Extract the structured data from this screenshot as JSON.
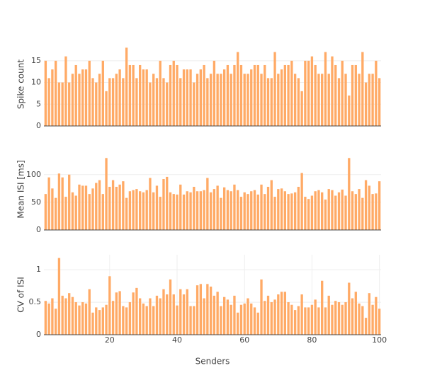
{
  "chart_data": [
    {
      "type": "bar",
      "y_label": "Spike count",
      "color": "#ffaa66",
      "x": [
        1,
        2,
        3,
        4,
        5,
        6,
        7,
        8,
        9,
        10,
        11,
        12,
        13,
        14,
        15,
        16,
        17,
        18,
        19,
        20,
        21,
        22,
        23,
        24,
        25,
        26,
        27,
        28,
        29,
        30,
        31,
        32,
        33,
        34,
        35,
        36,
        37,
        38,
        39,
        40,
        41,
        42,
        43,
        44,
        45,
        46,
        47,
        48,
        49,
        50,
        51,
        52,
        53,
        54,
        55,
        56,
        57,
        58,
        59,
        60,
        61,
        62,
        63,
        64,
        65,
        66,
        67,
        68,
        69,
        70,
        71,
        72,
        73,
        74,
        75,
        76,
        77,
        78,
        79,
        80,
        81,
        82,
        83,
        84,
        85,
        86,
        87,
        88,
        89,
        90,
        91,
        92,
        93,
        94,
        95,
        96,
        97,
        98,
        99,
        100
      ],
      "values": [
        15,
        11,
        13,
        15,
        10,
        10,
        16,
        10,
        12,
        14,
        12,
        13,
        13,
        15,
        11,
        10,
        12,
        15,
        8,
        11,
        11,
        12,
        13,
        11,
        18,
        14,
        14,
        11,
        14,
        13,
        13,
        10,
        12,
        11,
        15,
        11,
        10,
        14,
        15,
        14,
        11,
        13,
        13,
        13,
        10,
        12,
        13,
        14,
        11,
        12,
        15,
        12,
        12,
        13,
        14,
        12,
        14,
        17,
        14,
        12,
        12,
        13,
        14,
        14,
        12,
        14,
        11,
        11,
        17,
        12,
        13,
        14,
        14,
        15,
        12,
        11,
        8,
        15,
        15,
        16,
        14,
        12,
        12,
        17,
        12,
        16,
        14,
        11,
        15,
        12,
        7,
        14,
        14,
        12,
        17,
        10,
        12,
        12,
        15,
        11
      ],
      "xlim": [
        0.5,
        100.5
      ],
      "ylim": [
        0,
        19.2
      ],
      "yticks": [
        0,
        5,
        10,
        15
      ],
      "grid": true
    },
    {
      "type": "bar",
      "y_label": "Mean ISI [ms]",
      "color": "#ffaa66",
      "x": [
        1,
        2,
        3,
        4,
        5,
        6,
        7,
        8,
        9,
        10,
        11,
        12,
        13,
        14,
        15,
        16,
        17,
        18,
        19,
        20,
        21,
        22,
        23,
        24,
        25,
        26,
        27,
        28,
        29,
        30,
        31,
        32,
        33,
        34,
        35,
        36,
        37,
        38,
        39,
        40,
        41,
        42,
        43,
        44,
        45,
        46,
        47,
        48,
        49,
        50,
        51,
        52,
        53,
        54,
        55,
        56,
        57,
        58,
        59,
        60,
        61,
        62,
        63,
        64,
        65,
        66,
        67,
        68,
        69,
        70,
        71,
        72,
        73,
        74,
        75,
        76,
        77,
        78,
        79,
        80,
        81,
        82,
        83,
        84,
        85,
        86,
        87,
        88,
        89,
        90,
        91,
        92,
        93,
        94,
        95,
        96,
        97,
        98,
        99,
        100
      ],
      "values": [
        65,
        95,
        75,
        58,
        102,
        95,
        60,
        100,
        68,
        62,
        82,
        80,
        80,
        65,
        75,
        85,
        90,
        65,
        130,
        78,
        90,
        78,
        82,
        88,
        58,
        70,
        72,
        74,
        70,
        68,
        72,
        94,
        68,
        80,
        60,
        92,
        96,
        68,
        65,
        64,
        82,
        64,
        70,
        68,
        78,
        70,
        70,
        72,
        94,
        68,
        74,
        80,
        58,
        77,
        72,
        70,
        82,
        72,
        60,
        68,
        65,
        70,
        72,
        64,
        82,
        65,
        78,
        90,
        60,
        74,
        75,
        70,
        65,
        66,
        68,
        78,
        103,
        60,
        56,
        62,
        70,
        72,
        68,
        55,
        74,
        72,
        62,
        68,
        73,
        62,
        130,
        70,
        65,
        74,
        58,
        90,
        80,
        65,
        66,
        88
      ],
      "xlim": [
        0.5,
        100.5
      ],
      "ylim": [
        0,
        147
      ],
      "yticks": [
        0,
        50,
        100
      ],
      "grid": true
    },
    {
      "type": "bar",
      "y_label": "CV of ISI",
      "x_label": "Senders",
      "color": "#ffaa66",
      "x": [
        1,
        2,
        3,
        4,
        5,
        6,
        7,
        8,
        9,
        10,
        11,
        12,
        13,
        14,
        15,
        16,
        17,
        18,
        19,
        20,
        21,
        22,
        23,
        24,
        25,
        26,
        27,
        28,
        29,
        30,
        31,
        32,
        33,
        34,
        35,
        36,
        37,
        38,
        39,
        40,
        41,
        42,
        43,
        44,
        45,
        46,
        47,
        48,
        49,
        50,
        51,
        52,
        53,
        54,
        55,
        56,
        57,
        58,
        59,
        60,
        61,
        62,
        63,
        64,
        65,
        66,
        67,
        68,
        69,
        70,
        71,
        72,
        73,
        74,
        75,
        76,
        77,
        78,
        79,
        80,
        81,
        82,
        83,
        84,
        85,
        86,
        87,
        88,
        89,
        90,
        91,
        92,
        93,
        94,
        95,
        96,
        97,
        98,
        99,
        100
      ],
      "values": [
        0.52,
        0.48,
        0.56,
        0.4,
        1.18,
        0.6,
        0.56,
        0.64,
        0.58,
        0.5,
        0.45,
        0.5,
        0.48,
        0.7,
        0.34,
        0.42,
        0.38,
        0.42,
        0.46,
        0.9,
        0.52,
        0.65,
        0.67,
        0.44,
        0.42,
        0.5,
        0.65,
        0.72,
        0.56,
        0.48,
        0.44,
        0.56,
        0.44,
        0.6,
        0.56,
        0.7,
        0.62,
        0.85,
        0.62,
        0.45,
        0.7,
        0.62,
        0.7,
        0.44,
        0.44,
        0.76,
        0.78,
        0.56,
        0.78,
        0.74,
        0.6,
        0.66,
        0.44,
        0.58,
        0.54,
        0.46,
        0.6,
        0.34,
        0.46,
        0.48,
        0.56,
        0.48,
        0.42,
        0.34,
        0.85,
        0.52,
        0.6,
        0.5,
        0.54,
        0.62,
        0.66,
        0.66,
        0.5,
        0.46,
        0.38,
        0.44,
        0.62,
        0.42,
        0.42,
        0.46,
        0.54,
        0.42,
        0.83,
        0.42,
        0.6,
        0.46,
        0.52,
        0.5,
        0.46,
        0.5,
        0.8,
        0.56,
        0.66,
        0.48,
        0.44,
        0.26,
        0.64,
        0.46,
        0.58,
        0.4
      ],
      "xlim": [
        0.5,
        100.5
      ],
      "ylim": [
        0,
        1.23
      ],
      "yticks": [
        0,
        0.5,
        1
      ],
      "xticks": [
        20,
        40,
        60,
        80,
        100
      ],
      "grid": true
    }
  ]
}
